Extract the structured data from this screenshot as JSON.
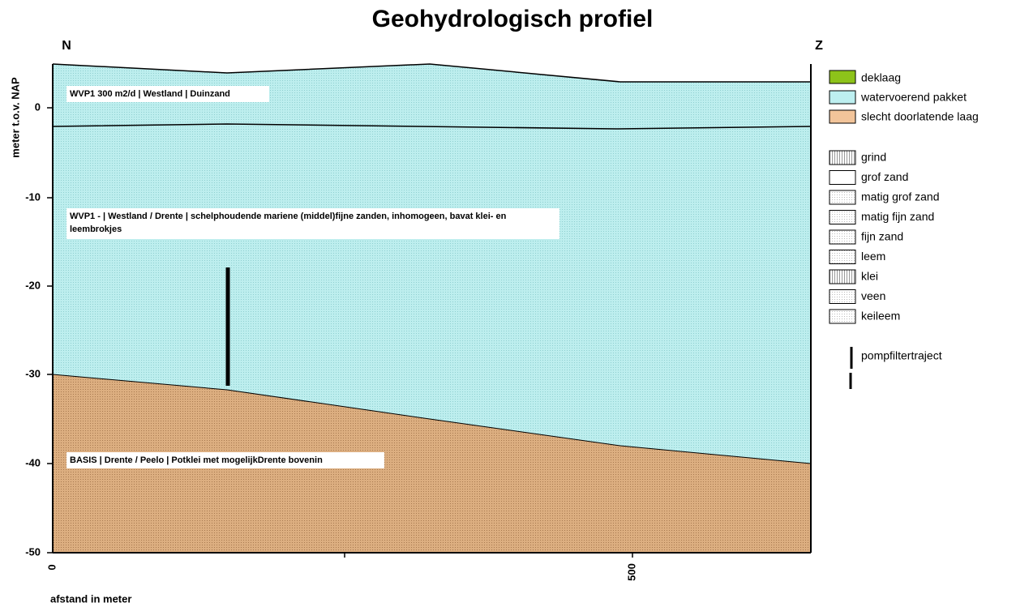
{
  "header": {
    "title": "Geohydrologisch profiel",
    "left_end": "N",
    "right_end": "Z"
  },
  "axes": {
    "y_label": "meter t.o.v. NAP",
    "x_label": "afstand in meter",
    "y_tick_labels": [
      "0",
      "-10",
      "-20",
      "-30",
      "-40",
      "-50"
    ],
    "x_tick_labels": [
      "0",
      "500"
    ]
  },
  "layers": [
    "WVP1 300 m2/d | Westland | Duinzand",
    "WVP1 - | Westland / Drente | schelphoudende mariene (middel)fijne zanden, inhomogeen, bavat klei- en leembrokjes",
    "BASIS  | Drente / Peelo | Potklei met mogelijkDrente bovenin"
  ],
  "legend": {
    "layer_types": [
      "deklaag",
      "watervoerend pakket",
      "slecht doorlatende laag"
    ],
    "materials": [
      "grind",
      "grof zand",
      "matig grof zand",
      "matig fijn zand",
      "fijn zand",
      "leem",
      "klei",
      "veen",
      "keileem"
    ],
    "pump": "pompfiltertraject"
  }
}
